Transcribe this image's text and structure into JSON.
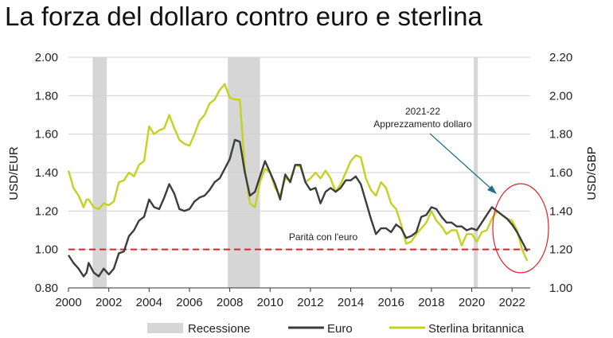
{
  "chart_data": {
    "type": "line",
    "title": "La forza del dollaro contro euro e sterlina",
    "y_left_label": "USD/EUR",
    "y_right_label": "USD/GBP",
    "y_left_range": [
      0.8,
      2.0
    ],
    "y_right_range": [
      1.0,
      2.2
    ],
    "y_left_ticks": [
      "0.80",
      "1.00",
      "1.20",
      "1.40",
      "1.60",
      "1.80",
      "2.00"
    ],
    "y_right_ticks": [
      "1.00",
      "1.20",
      "1.40",
      "1.60",
      "1.80",
      "2.00",
      "2.20"
    ],
    "x_range": [
      2000,
      2022.9
    ],
    "x_ticks": [
      "2000",
      "2002",
      "2004",
      "2006",
      "2008",
      "2010",
      "2012",
      "2014",
      "2016",
      "2018",
      "2020",
      "2022"
    ],
    "grid": true,
    "recessions": [
      [
        2001.2,
        2001.9
      ],
      [
        2007.9,
        2009.5
      ],
      [
        2020.1,
        2020.3
      ]
    ],
    "reference_line": {
      "axis": "left",
      "value": 1.0,
      "label": "Parità con l'euro",
      "color": "#e0202a"
    },
    "annotation": {
      "lines": [
        "2021-22",
        "Apprezzamento dollaro"
      ]
    },
    "series": [
      {
        "name": "Euro",
        "axis": "left",
        "color": "#3a3d3c",
        "x": [
          2000.0,
          2000.25,
          2000.5,
          2000.75,
          2000.9,
          2001.0,
          2001.25,
          2001.5,
          2001.75,
          2002.0,
          2002.25,
          2002.5,
          2002.75,
          2003.0,
          2003.25,
          2003.5,
          2003.75,
          2004.0,
          2004.25,
          2004.5,
          2004.75,
          2005.0,
          2005.25,
          2005.5,
          2005.75,
          2006.0,
          2006.25,
          2006.5,
          2006.75,
          2007.0,
          2007.25,
          2007.5,
          2007.75,
          2008.0,
          2008.25,
          2008.5,
          2008.75,
          2009.0,
          2009.25,
          2009.5,
          2009.75,
          2010.0,
          2010.25,
          2010.5,
          2010.75,
          2011.0,
          2011.25,
          2011.5,
          2011.75,
          2012.0,
          2012.25,
          2012.5,
          2012.75,
          2013.0,
          2013.25,
          2013.5,
          2013.75,
          2014.0,
          2014.25,
          2014.5,
          2014.75,
          2015.0,
          2015.25,
          2015.5,
          2015.75,
          2016.0,
          2016.25,
          2016.5,
          2016.75,
          2017.0,
          2017.25,
          2017.5,
          2017.75,
          2018.0,
          2018.25,
          2018.5,
          2018.75,
          2019.0,
          2019.25,
          2019.5,
          2019.75,
          2020.0,
          2020.25,
          2020.5,
          2020.75,
          2021.0,
          2021.25,
          2021.5,
          2021.75,
          2022.0,
          2022.25,
          2022.5,
          2022.75
        ],
        "values": [
          0.97,
          0.93,
          0.9,
          0.86,
          0.88,
          0.93,
          0.88,
          0.86,
          0.9,
          0.87,
          0.9,
          0.98,
          0.99,
          1.07,
          1.1,
          1.15,
          1.17,
          1.26,
          1.22,
          1.21,
          1.27,
          1.34,
          1.29,
          1.21,
          1.2,
          1.21,
          1.25,
          1.27,
          1.28,
          1.31,
          1.35,
          1.37,
          1.42,
          1.47,
          1.57,
          1.56,
          1.4,
          1.28,
          1.3,
          1.38,
          1.46,
          1.4,
          1.34,
          1.26,
          1.39,
          1.35,
          1.44,
          1.44,
          1.35,
          1.31,
          1.32,
          1.24,
          1.3,
          1.32,
          1.3,
          1.32,
          1.36,
          1.36,
          1.38,
          1.34,
          1.25,
          1.16,
          1.08,
          1.11,
          1.11,
          1.09,
          1.13,
          1.11,
          1.06,
          1.07,
          1.09,
          1.17,
          1.18,
          1.22,
          1.21,
          1.17,
          1.14,
          1.14,
          1.12,
          1.12,
          1.1,
          1.11,
          1.1,
          1.14,
          1.18,
          1.22,
          1.2,
          1.18,
          1.16,
          1.13,
          1.09,
          1.04,
          0.99
        ]
      },
      {
        "name": "Sterlina britannica",
        "axis": "right",
        "color": "#c5d11f",
        "x": [
          2000.0,
          2000.25,
          2000.5,
          2000.75,
          2000.9,
          2001.0,
          2001.25,
          2001.5,
          2001.75,
          2002.0,
          2002.25,
          2002.5,
          2002.75,
          2003.0,
          2003.25,
          2003.5,
          2003.75,
          2004.0,
          2004.25,
          2004.5,
          2004.75,
          2005.0,
          2005.25,
          2005.5,
          2005.75,
          2006.0,
          2006.25,
          2006.5,
          2006.75,
          2007.0,
          2007.25,
          2007.5,
          2007.75,
          2008.0,
          2008.25,
          2008.5,
          2008.75,
          2009.0,
          2009.25,
          2009.5,
          2009.75,
          2010.0,
          2010.25,
          2010.5,
          2010.75,
          2011.0,
          2011.25,
          2011.5,
          2011.75,
          2012.0,
          2012.25,
          2012.5,
          2012.75,
          2013.0,
          2013.25,
          2013.5,
          2013.75,
          2014.0,
          2014.25,
          2014.5,
          2014.75,
          2015.0,
          2015.25,
          2015.5,
          2015.75,
          2016.0,
          2016.25,
          2016.5,
          2016.75,
          2017.0,
          2017.25,
          2017.5,
          2017.75,
          2018.0,
          2018.25,
          2018.5,
          2018.75,
          2019.0,
          2019.25,
          2019.5,
          2019.75,
          2020.0,
          2020.25,
          2020.5,
          2020.75,
          2021.0,
          2021.25,
          2021.5,
          2021.75,
          2022.0,
          2022.25,
          2022.5,
          2022.75
        ],
        "values": [
          1.61,
          1.52,
          1.48,
          1.42,
          1.46,
          1.46,
          1.42,
          1.41,
          1.44,
          1.43,
          1.45,
          1.55,
          1.56,
          1.6,
          1.58,
          1.64,
          1.66,
          1.84,
          1.8,
          1.82,
          1.83,
          1.9,
          1.83,
          1.77,
          1.75,
          1.74,
          1.8,
          1.87,
          1.9,
          1.96,
          1.98,
          2.03,
          2.06,
          1.99,
          1.98,
          1.98,
          1.62,
          1.44,
          1.42,
          1.55,
          1.62,
          1.6,
          1.52,
          1.48,
          1.57,
          1.56,
          1.64,
          1.63,
          1.55,
          1.57,
          1.6,
          1.57,
          1.61,
          1.57,
          1.5,
          1.54,
          1.6,
          1.66,
          1.69,
          1.68,
          1.57,
          1.51,
          1.48,
          1.55,
          1.52,
          1.44,
          1.41,
          1.33,
          1.23,
          1.24,
          1.28,
          1.31,
          1.34,
          1.4,
          1.35,
          1.32,
          1.28,
          1.3,
          1.3,
          1.22,
          1.28,
          1.28,
          1.24,
          1.29,
          1.3,
          1.36,
          1.4,
          1.38,
          1.36,
          1.35,
          1.3,
          1.2,
          1.14
        ]
      }
    ]
  },
  "legend": {
    "recession": "Recessione",
    "euro": "Euro",
    "gbp": "Sterlina britannica"
  },
  "colors": {
    "recession": "#d6d6d6",
    "grid": "#d0d0d0",
    "highlight_circle": "#e0202a",
    "arrow": "#1f6f88"
  }
}
